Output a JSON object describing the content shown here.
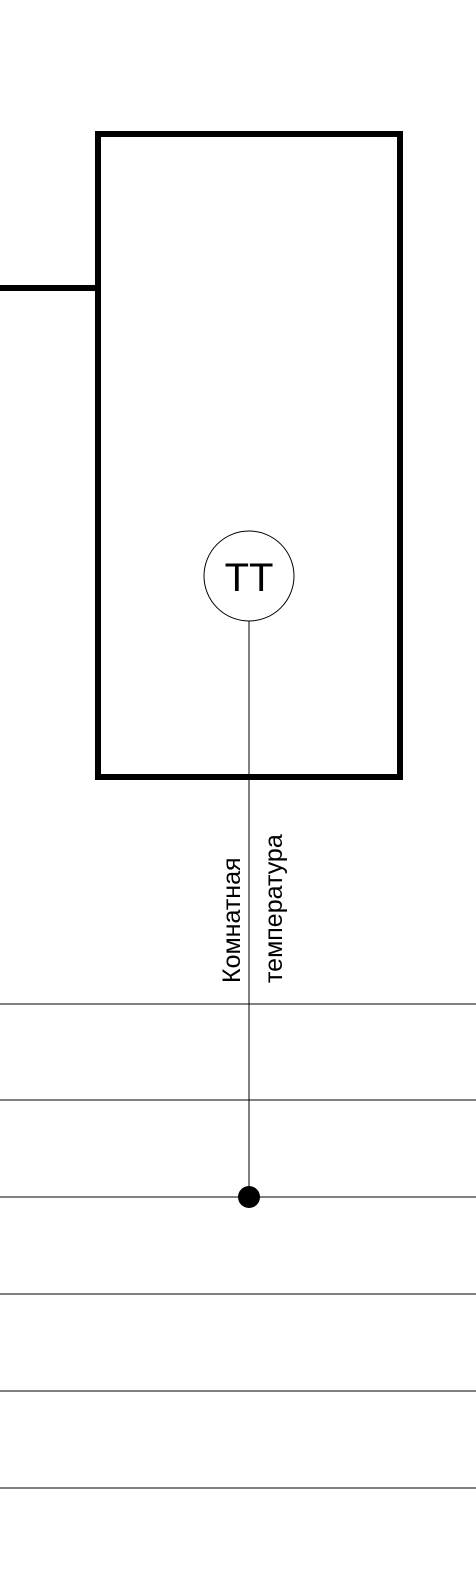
{
  "diagram": {
    "instrument": {
      "tag": "TT"
    },
    "signal_label": {
      "line1": "Комнатная",
      "line2": "температура"
    },
    "colors": {
      "line": "#000000",
      "background": "#ffffff"
    }
  }
}
